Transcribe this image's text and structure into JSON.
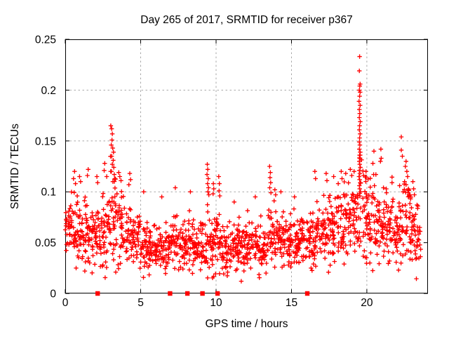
{
  "chart_data": {
    "type": "scatter",
    "title": "Day 265 of 2017, SRMTID for receiver p367",
    "xlabel": "GPS time / hours",
    "ylabel": "SRMTID / TECUs",
    "xlim": [
      0,
      24.05
    ],
    "ylim": [
      0,
      0.25
    ],
    "xticks": [
      0,
      5,
      10,
      15,
      20
    ],
    "xgrid_ticks": [
      5,
      10,
      15,
      20
    ],
    "yticks": [
      0,
      0.05,
      0.1,
      0.15,
      0.2,
      0.25
    ],
    "ytick_labels": [
      "0",
      "0.05",
      "0.1",
      "0.15",
      "0.2",
      "0.25"
    ],
    "ygrid_ticks": [
      0.05,
      0.1,
      0.15,
      0.2
    ],
    "grid": true,
    "legend": "none",
    "marker": "plus",
    "marker_color": "#ff0000",
    "zero_marker": "filled-square",
    "grid_color": "#a8a8a8",
    "axis_color": "#000000",
    "background": "#ffffff",
    "zero_marker_hours": [
      2.15,
      6.95,
      8.1,
      9.1,
      10.1,
      16.05
    ],
    "band_bins": [
      [
        0.0,
        0.5,
        34,
        0.068,
        0.012
      ],
      [
        0.5,
        1.0,
        34,
        0.062,
        0.014
      ],
      [
        1.0,
        1.5,
        34,
        0.058,
        0.016
      ],
      [
        1.5,
        2.0,
        34,
        0.056,
        0.014
      ],
      [
        2.0,
        2.5,
        34,
        0.06,
        0.015
      ],
      [
        2.5,
        3.0,
        34,
        0.063,
        0.017
      ],
      [
        3.0,
        3.5,
        36,
        0.075,
        0.024
      ],
      [
        3.5,
        4.0,
        34,
        0.065,
        0.02
      ],
      [
        4.0,
        4.5,
        34,
        0.057,
        0.016
      ],
      [
        4.5,
        5.0,
        34,
        0.052,
        0.013
      ],
      [
        5.0,
        5.5,
        34,
        0.049,
        0.012
      ],
      [
        5.5,
        6.0,
        34,
        0.047,
        0.011
      ],
      [
        6.0,
        6.5,
        34,
        0.046,
        0.012
      ],
      [
        6.5,
        7.0,
        34,
        0.048,
        0.012
      ],
      [
        7.0,
        7.5,
        34,
        0.051,
        0.013
      ],
      [
        7.5,
        8.0,
        34,
        0.049,
        0.013
      ],
      [
        8.0,
        8.5,
        34,
        0.049,
        0.013
      ],
      [
        8.5,
        9.0,
        34,
        0.047,
        0.012
      ],
      [
        9.0,
        9.5,
        34,
        0.054,
        0.016
      ],
      [
        9.5,
        10.0,
        34,
        0.051,
        0.014
      ],
      [
        10.0,
        10.5,
        34,
        0.049,
        0.013
      ],
      [
        10.5,
        11.0,
        34,
        0.045,
        0.012
      ],
      [
        11.0,
        11.5,
        34,
        0.044,
        0.012
      ],
      [
        11.5,
        12.0,
        34,
        0.046,
        0.012
      ],
      [
        12.0,
        12.5,
        34,
        0.048,
        0.012
      ],
      [
        12.5,
        13.0,
        34,
        0.048,
        0.013
      ],
      [
        13.0,
        13.5,
        34,
        0.05,
        0.014
      ],
      [
        13.5,
        14.0,
        34,
        0.055,
        0.016
      ],
      [
        14.0,
        14.5,
        34,
        0.054,
        0.014
      ],
      [
        14.5,
        15.0,
        34,
        0.051,
        0.013
      ],
      [
        15.0,
        15.5,
        34,
        0.05,
        0.013
      ],
      [
        15.5,
        16.0,
        34,
        0.052,
        0.014
      ],
      [
        16.0,
        16.5,
        34,
        0.054,
        0.014
      ],
      [
        16.5,
        17.0,
        34,
        0.056,
        0.015
      ],
      [
        17.0,
        17.5,
        34,
        0.058,
        0.016
      ],
      [
        17.5,
        18.0,
        34,
        0.062,
        0.017
      ],
      [
        18.0,
        18.5,
        34,
        0.066,
        0.018
      ],
      [
        18.5,
        19.0,
        34,
        0.069,
        0.019
      ],
      [
        19.0,
        19.5,
        34,
        0.072,
        0.02
      ],
      [
        19.5,
        20.0,
        36,
        0.08,
        0.024
      ],
      [
        20.0,
        20.5,
        34,
        0.074,
        0.021
      ],
      [
        20.5,
        21.0,
        34,
        0.069,
        0.019
      ],
      [
        21.0,
        21.5,
        34,
        0.062,
        0.017
      ],
      [
        21.5,
        22.0,
        34,
        0.065,
        0.018
      ],
      [
        22.0,
        22.5,
        34,
        0.068,
        0.02
      ],
      [
        22.5,
        23.0,
        34,
        0.071,
        0.021
      ],
      [
        23.0,
        23.4,
        28,
        0.062,
        0.017
      ],
      [
        23.4,
        23.6,
        10,
        0.057,
        0.013
      ]
    ],
    "feature_points": [
      [
        3.02,
        0.165
      ],
      [
        3.08,
        0.162
      ],
      [
        3.12,
        0.157
      ],
      [
        3.1,
        0.151
      ],
      [
        3.05,
        0.146
      ],
      [
        3.15,
        0.143
      ],
      [
        3.2,
        0.139
      ],
      [
        3.08,
        0.135
      ],
      [
        3.18,
        0.131
      ],
      [
        3.12,
        0.127
      ],
      [
        3.22,
        0.124
      ],
      [
        3.06,
        0.12
      ],
      [
        3.25,
        0.117
      ],
      [
        3.3,
        0.113
      ],
      [
        3.16,
        0.11
      ],
      [
        3.55,
        0.119
      ],
      [
        3.62,
        0.115
      ],
      [
        3.7,
        0.111
      ],
      [
        2.62,
        0.128
      ],
      [
        2.58,
        0.121
      ],
      [
        2.75,
        0.115
      ],
      [
        4.28,
        0.118
      ],
      [
        4.33,
        0.112
      ],
      [
        4.22,
        0.107
      ],
      [
        1.52,
        0.122
      ],
      [
        1.47,
        0.116
      ],
      [
        0.62,
        0.12
      ],
      [
        0.55,
        0.113
      ],
      [
        0.68,
        0.108
      ],
      [
        0.95,
        0.115
      ],
      [
        1.02,
        0.11
      ],
      [
        2.1,
        0.115
      ],
      [
        2.15,
        0.109
      ],
      [
        9.42,
        0.127
      ],
      [
        9.45,
        0.122
      ],
      [
        9.4,
        0.117
      ],
      [
        9.48,
        0.113
      ],
      [
        9.44,
        0.108
      ],
      [
        9.5,
        0.104
      ],
      [
        9.46,
        0.1
      ],
      [
        9.52,
        0.097
      ],
      [
        9.82,
        0.108
      ],
      [
        9.85,
        0.103
      ],
      [
        9.8,
        0.098
      ],
      [
        10.18,
        0.115
      ],
      [
        10.22,
        0.108
      ],
      [
        10.2,
        0.101
      ],
      [
        10.25,
        0.096
      ],
      [
        13.55,
        0.125
      ],
      [
        13.6,
        0.119
      ],
      [
        13.58,
        0.114
      ],
      [
        13.62,
        0.109
      ],
      [
        13.56,
        0.104
      ],
      [
        13.64,
        0.099
      ],
      [
        13.9,
        0.102
      ],
      [
        13.95,
        0.097
      ],
      [
        19.52,
        0.233
      ],
      [
        19.5,
        0.219
      ],
      [
        19.55,
        0.206
      ],
      [
        19.53,
        0.204
      ],
      [
        19.5,
        0.2
      ],
      [
        19.55,
        0.198
      ],
      [
        19.52,
        0.194
      ],
      [
        19.48,
        0.189
      ],
      [
        19.55,
        0.185
      ],
      [
        19.5,
        0.181
      ],
      [
        19.53,
        0.177
      ],
      [
        19.5,
        0.173
      ],
      [
        19.56,
        0.169
      ],
      [
        19.52,
        0.165
      ],
      [
        19.5,
        0.161
      ],
      [
        19.55,
        0.157
      ],
      [
        19.52,
        0.153
      ],
      [
        19.5,
        0.149
      ],
      [
        19.54,
        0.146
      ],
      [
        19.5,
        0.142
      ],
      [
        19.56,
        0.139
      ],
      [
        19.52,
        0.136
      ],
      [
        19.55,
        0.133
      ],
      [
        19.5,
        0.13
      ],
      [
        19.53,
        0.127
      ],
      [
        19.57,
        0.124
      ],
      [
        19.5,
        0.121
      ],
      [
        19.54,
        0.118
      ],
      [
        19.48,
        0.115
      ],
      [
        19.52,
        0.112
      ],
      [
        19.56,
        0.109
      ],
      [
        19.5,
        0.106
      ],
      [
        19.53,
        0.103
      ],
      [
        19.58,
        0.1
      ],
      [
        20.47,
        0.14
      ],
      [
        20.93,
        0.142
      ],
      [
        20.95,
        0.133
      ],
      [
        20.4,
        0.128
      ],
      [
        20.9,
        0.13
      ],
      [
        20.45,
        0.117
      ],
      [
        20.6,
        0.117
      ],
      [
        20.5,
        0.106
      ],
      [
        21.1,
        0.104
      ],
      [
        21.67,
        0.109
      ],
      [
        21.3,
        0.099
      ],
      [
        22.28,
        0.154
      ],
      [
        22.28,
        0.141
      ],
      [
        22.35,
        0.135
      ],
      [
        22.6,
        0.13
      ],
      [
        22.55,
        0.125
      ],
      [
        22.65,
        0.12
      ],
      [
        22.7,
        0.115
      ],
      [
        22.5,
        0.11
      ],
      [
        22.6,
        0.107
      ],
      [
        22.75,
        0.103
      ],
      [
        22.4,
        0.1
      ],
      [
        22.8,
        0.097
      ],
      [
        22.9,
        0.093
      ],
      [
        23.05,
        0.11
      ],
      [
        23.1,
        0.103
      ],
      [
        23.15,
        0.097
      ],
      [
        16.55,
        0.12
      ],
      [
        16.6,
        0.113
      ],
      [
        17.3,
        0.118
      ],
      [
        17.35,
        0.111
      ],
      [
        17.8,
        0.115
      ],
      [
        18.3,
        0.12
      ],
      [
        18.35,
        0.113
      ],
      [
        18.6,
        0.118
      ],
      [
        18.9,
        0.122
      ],
      [
        19.0,
        0.116
      ],
      [
        19.15,
        0.12
      ],
      [
        18.1,
        0.108
      ],
      [
        0.72,
        0.025
      ],
      [
        1.3,
        0.022
      ],
      [
        2.5,
        0.028
      ],
      [
        3.35,
        0.021
      ],
      [
        5.5,
        0.026
      ],
      [
        7.8,
        0.024
      ],
      [
        10.77,
        0.021
      ],
      [
        11.67,
        0.012
      ],
      [
        12.3,
        0.025
      ],
      [
        14.8,
        0.028
      ],
      [
        16.3,
        0.025
      ],
      [
        20.2,
        0.03
      ],
      [
        21.5,
        0.032
      ],
      [
        23.3,
        0.035
      ],
      [
        6.4,
        0.095
      ],
      [
        7.3,
        0.104
      ],
      [
        5.2,
        0.1
      ],
      [
        8.3,
        0.1
      ],
      [
        12.6,
        0.095
      ],
      [
        14.3,
        0.1
      ],
      [
        15.2,
        0.095
      ],
      [
        11.2,
        0.09
      ]
    ]
  }
}
